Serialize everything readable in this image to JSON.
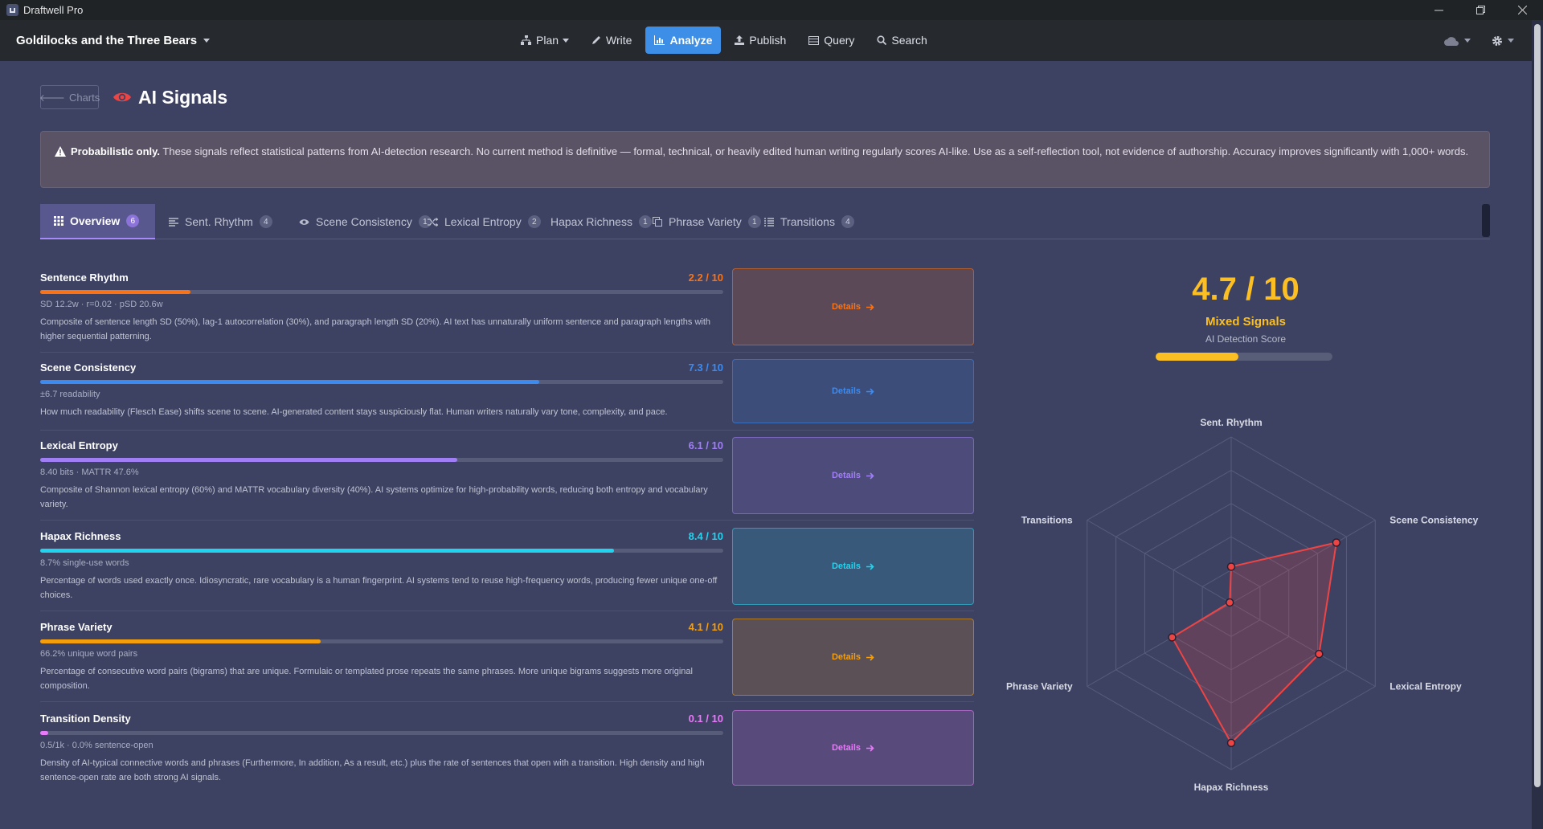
{
  "window": {
    "title": "Draftwell Pro"
  },
  "header": {
    "document_title": "Goldilocks and the Three Bears",
    "nav": [
      {
        "label": "Plan",
        "icon": "sitemap-icon",
        "has_caret": true
      },
      {
        "label": "Write",
        "icon": "pencil-icon"
      },
      {
        "label": "Analyze",
        "icon": "bar-chart-icon",
        "active": true
      },
      {
        "label": "Publish",
        "icon": "upload-icon"
      },
      {
        "label": "Query",
        "icon": "table-icon"
      },
      {
        "label": "Search",
        "icon": "search-icon"
      }
    ]
  },
  "page": {
    "back_label": "Charts",
    "title": "AI Signals"
  },
  "warning": {
    "bold": "Probabilistic only.",
    "text": " These signals reflect statistical patterns from AI-detection research. No current method is definitive — formal, technical, or heavily edited human writing regularly scores AI-like. Use as a self-reflection tool, not evidence of authorship. Accuracy improves significantly with 1,000+ words."
  },
  "tabs": [
    {
      "label": "Overview",
      "count": "6",
      "active": true
    },
    {
      "label": "Sent. Rhythm",
      "count": "4"
    },
    {
      "label": "Scene Consistency",
      "count": "1"
    },
    {
      "label": "Lexical Entropy",
      "count": "2"
    },
    {
      "label": "Hapax Richness",
      "count": "1"
    },
    {
      "label": "Phrase Variety",
      "count": "1"
    },
    {
      "label": "Transitions",
      "count": "4"
    }
  ],
  "details_label": "Details",
  "metrics": [
    {
      "name": "Sentence Rhythm",
      "score": "2.2 / 10",
      "value": 2.2,
      "color": "#f97316",
      "sub": "SD 12.2w · r=0.02 · pSD 20.6w",
      "desc": "Composite of sentence length SD (50%), lag-1 autocorrelation (30%), and paragraph length SD (20%). AI text has unnaturally uniform sentence and paragraph lengths with higher sequential patterning."
    },
    {
      "name": "Scene Consistency",
      "score": "7.3 / 10",
      "value": 7.3,
      "color": "#3b8bf0",
      "sub": "±6.7 readability",
      "desc": "How much readability (Flesch Ease) shifts scene to scene. AI-generated content stays suspiciously flat. Human writers naturally vary tone, complexity, and pace."
    },
    {
      "name": "Lexical Entropy",
      "score": "6.1 / 10",
      "value": 6.1,
      "color": "#a07ef5",
      "sub": "8.40 bits · MATTR 47.6%",
      "desc": "Composite of Shannon lexical entropy (60%) and MATTR vocabulary diversity (40%). AI systems optimize for high-probability words, reducing both entropy and vocabulary variety."
    },
    {
      "name": "Hapax Richness",
      "score": "8.4 / 10",
      "value": 8.4,
      "color": "#22d3ee",
      "sub": "8.7% single-use words",
      "desc": "Percentage of words used exactly once. Idiosyncratic, rare vocabulary is a human fingerprint. AI systems tend to reuse high-frequency words, producing fewer unique one-off choices."
    },
    {
      "name": "Phrase Variety",
      "score": "4.1 / 10",
      "value": 4.1,
      "color": "#f59e0b",
      "sub": "66.2% unique word pairs",
      "desc": "Percentage of consecutive word pairs (bigrams) that are unique. Formulaic or templated prose repeats the same phrases. More unique bigrams suggests more original composition."
    },
    {
      "name": "Transition Density",
      "score": "0.1 / 10",
      "value": 0.1,
      "color": "#e879f9",
      "sub": "0.5/1k · 0.0% sentence-open",
      "desc": "Density of AI-typical connective words and phrases (Furthermore, In addition, As a result, etc.) plus the rate of sentences that open with a transition. High density and high sentence-open rate are both strong AI signals."
    }
  ],
  "summary": {
    "score": "4.7 / 10",
    "value": 4.7,
    "verdict": "Mixed Signals",
    "label": "AI Detection Score",
    "color": "#fbbf24"
  },
  "chart_data": {
    "type": "radar",
    "max": 10,
    "axes": [
      "Sent. Rhythm",
      "Scene Consistency",
      "Lexical Entropy",
      "Hapax Richness",
      "Phrase Variety",
      "Transitions"
    ],
    "values": [
      2.2,
      7.3,
      6.1,
      8.4,
      4.1,
      0.1
    ],
    "rings": 5,
    "color": "#ef4444"
  }
}
